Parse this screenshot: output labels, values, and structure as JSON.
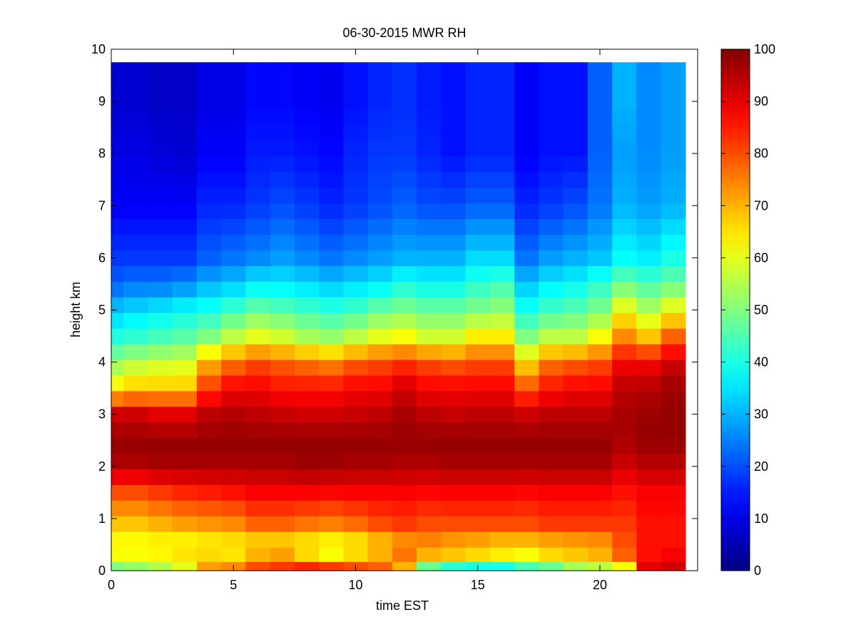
{
  "chart_data": {
    "type": "heatmap",
    "title": "06-30-2015 MWR RH",
    "xlabel": "time EST",
    "ylabel": "height km",
    "xlim": [
      0,
      24
    ],
    "ylim": [
      0,
      10
    ],
    "xticks": [
      0,
      5,
      10,
      15,
      20
    ],
    "yticks": [
      0,
      1,
      2,
      3,
      4,
      5,
      6,
      7,
      8,
      9,
      10
    ],
    "colorbar": {
      "range": [
        0,
        100
      ],
      "ticks": [
        0,
        10,
        20,
        30,
        40,
        50,
        60,
        70,
        80,
        90,
        100
      ],
      "colormap": "jet"
    },
    "grid": false,
    "time_bins": [
      0,
      1,
      2,
      3,
      4,
      5,
      6,
      7,
      8,
      9,
      10,
      11,
      12,
      13,
      14,
      15,
      16,
      17,
      18,
      19,
      20,
      21,
      22,
      23
    ],
    "height_km": [
      0.05,
      0.3,
      0.6,
      0.9,
      1.2,
      1.5,
      1.8,
      2.1,
      2.4,
      2.7,
      3.0,
      3.3,
      3.6,
      3.9,
      4.2,
      4.5,
      4.8,
      5.1,
      5.4,
      5.7,
      6.0,
      6.3,
      6.6,
      6.9,
      7.2,
      7.5,
      7.8,
      8.1,
      8.4,
      8.7,
      9.0,
      9.3,
      9.6
    ],
    "anchor_heights_km": [
      0.05,
      0.3,
      0.6,
      0.9,
      1.5,
      2.0,
      2.5,
      3.0,
      3.5,
      4.0,
      4.5,
      5.0,
      5.5,
      6.0,
      7.0,
      8.0,
      9.0,
      9.6
    ],
    "rh_anchor_profiles": [
      [
        50,
        62,
        63,
        68,
        80,
        95,
        98,
        92,
        64,
        52,
        40,
        32,
        22,
        18,
        12,
        10,
        8,
        8
      ],
      [
        52,
        62,
        63,
        68,
        80,
        95,
        98,
        92,
        68,
        55,
        42,
        34,
        24,
        18,
        12,
        10,
        8,
        8
      ],
      [
        55,
        63,
        64,
        70,
        82,
        96,
        98,
        90,
        68,
        57,
        44,
        36,
        24,
        18,
        12,
        9,
        7,
        7
      ],
      [
        60,
        65,
        64,
        72,
        84,
        96,
        98,
        90,
        68,
        58,
        46,
        38,
        26,
        18,
        12,
        8,
        7,
        7
      ],
      [
        72,
        66,
        65,
        73,
        85,
        96,
        98,
        94,
        82,
        70,
        50,
        40,
        30,
        22,
        16,
        12,
        10,
        10
      ],
      [
        74,
        65,
        66,
        74,
        86,
        96,
        98,
        95,
        88,
        76,
        56,
        44,
        32,
        24,
        16,
        12,
        10,
        10
      ],
      [
        80,
        70,
        68,
        78,
        88,
        96,
        98,
        94,
        88,
        80,
        60,
        48,
        36,
        26,
        18,
        15,
        13,
        13
      ],
      [
        82,
        72,
        68,
        78,
        88,
        96,
        98,
        93,
        86,
        78,
        58,
        46,
        36,
        28,
        20,
        15,
        13,
        13
      ],
      [
        84,
        66,
        66,
        76,
        88,
        97,
        98,
        92,
        86,
        76,
        54,
        44,
        34,
        26,
        18,
        14,
        12,
        12
      ],
      [
        82,
        62,
        64,
        75,
        87,
        97,
        98,
        92,
        86,
        74,
        52,
        42,
        32,
        24,
        16,
        13,
        11,
        11
      ],
      [
        80,
        66,
        66,
        77,
        88,
        96,
        98,
        93,
        88,
        78,
        56,
        44,
        34,
        26,
        18,
        16,
        14,
        14
      ],
      [
        78,
        70,
        70,
        80,
        88,
        96,
        98,
        94,
        88,
        80,
        60,
        48,
        36,
        28,
        20,
        18,
        16,
        16
      ],
      [
        70,
        76,
        74,
        82,
        88,
        95,
        98,
        96,
        92,
        82,
        62,
        50,
        40,
        30,
        22,
        18,
        17,
        17
      ],
      [
        48,
        70,
        75,
        80,
        87,
        95,
        98,
        94,
        88,
        80,
        58,
        48,
        38,
        30,
        20,
        16,
        15,
        15
      ],
      [
        42,
        68,
        73,
        80,
        88,
        96,
        98,
        93,
        88,
        78,
        58,
        48,
        38,
        30,
        20,
        14,
        14,
        14
      ],
      [
        40,
        66,
        72,
        80,
        88,
        96,
        98,
        94,
        88,
        80,
        64,
        50,
        42,
        34,
        22,
        16,
        16,
        16
      ],
      [
        40,
        64,
        70,
        80,
        88,
        96,
        98,
        94,
        88,
        80,
        64,
        52,
        44,
        34,
        22,
        16,
        16,
        16
      ],
      [
        45,
        62,
        70,
        80,
        87,
        96,
        98,
        92,
        80,
        66,
        50,
        40,
        32,
        24,
        16,
        12,
        12,
        12
      ],
      [
        48,
        66,
        72,
        82,
        88,
        96,
        98,
        94,
        86,
        76,
        56,
        44,
        36,
        28,
        18,
        14,
        14,
        14
      ],
      [
        54,
        68,
        73,
        82,
        88,
        96,
        98,
        94,
        88,
        78,
        56,
        46,
        38,
        30,
        20,
        14,
        14,
        14
      ],
      [
        56,
        70,
        74,
        82,
        88,
        96,
        98,
        94,
        88,
        80,
        62,
        50,
        42,
        32,
        24,
        22,
        22,
        22
      ],
      [
        62,
        78,
        80,
        82,
        86,
        92,
        96,
        96,
        94,
        88,
        74,
        62,
        48,
        38,
        30,
        28,
        30,
        30
      ],
      [
        90,
        86,
        86,
        86,
        88,
        94,
        98,
        97,
        95,
        88,
        68,
        55,
        45,
        36,
        28,
        26,
        26,
        26
      ],
      [
        92,
        88,
        86,
        86,
        88,
        94,
        98,
        98,
        97,
        92,
        78,
        62,
        48,
        40,
        30,
        28,
        28,
        28
      ]
    ]
  }
}
